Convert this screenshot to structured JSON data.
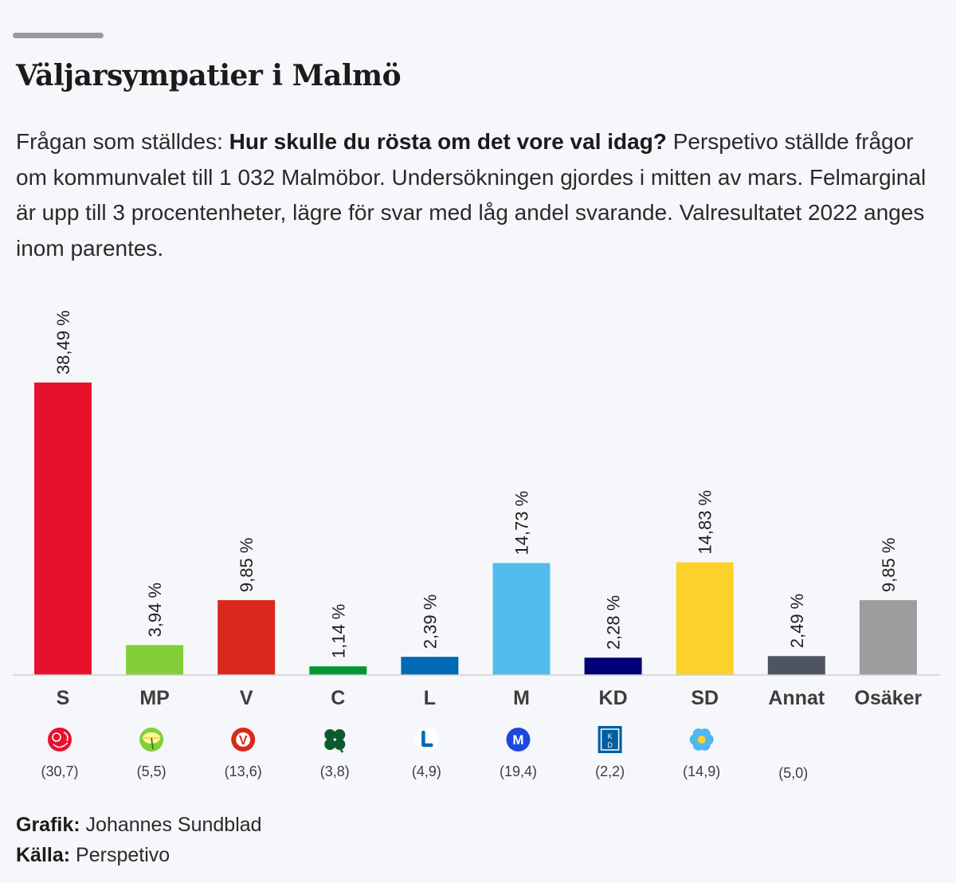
{
  "header": {
    "title": "Väljarsympatier i Malmö"
  },
  "intro": {
    "prefix": "Frågan som ställdes: ",
    "question": "Hur skulle du rösta om det vore val idag?",
    "body": "  Perspetivo ställde frågor om kommunvalet till 1 032 Malmöbor. Undersökningen gjordes i mitten av mars. Felmarginal är upp till 3 procentenheter, lägre för svar med låg andel svarande. Valresultatet 2022 anges inom parentes."
  },
  "chart_data": {
    "type": "bar",
    "title": "Väljarsympatier i Malmö",
    "xlabel": "",
    "ylabel": "",
    "ylim": [
      0,
      40
    ],
    "grid": false,
    "legend": "none",
    "categories": [
      "S",
      "MP",
      "V",
      "C",
      "L",
      "M",
      "KD",
      "SD",
      "Annat",
      "Osäker"
    ],
    "values": [
      38.49,
      3.94,
      9.85,
      1.14,
      2.39,
      14.73,
      2.28,
      14.83,
      2.49,
      9.85
    ],
    "value_labels": [
      "38,49 %",
      "3,94 %",
      "9,85 %",
      "1,14 %",
      "2,39 %",
      "14,73 %",
      "2,28 %",
      "14,83 %",
      "2,49 %",
      "9,85 %"
    ],
    "previous_result_labels": [
      "(30,7)",
      "(5,5)",
      "(13,6)",
      "(3,8)",
      "(4,9)",
      "(19,4)",
      "(2,2)",
      "(14,9)",
      "(5,0)",
      ""
    ],
    "colors": [
      "#e8112d",
      "#83cf39",
      "#da291c",
      "#009933",
      "#006ab3",
      "#52bdec",
      "#000077",
      "#fcd12a",
      "#4f5560",
      "#9d9d9d"
    ],
    "logos": [
      "s-rose-icon",
      "mp-dandelion-icon",
      "v-star-icon",
      "c-clover-icon",
      "l-letter-icon",
      "m-moderaterna-icon",
      "kd-box-icon",
      "sd-flower-icon",
      "",
      ""
    ]
  },
  "credits": {
    "grafik_label": "Grafik:",
    "grafik_value": " Johannes Sundblad",
    "source_label": "Källa:",
    "source_value": " Perspetivo"
  }
}
